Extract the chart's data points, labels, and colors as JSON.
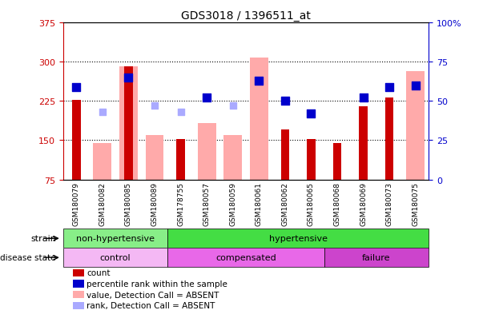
{
  "title": "GDS3018 / 1396511_at",
  "samples": [
    "GSM180079",
    "GSM180082",
    "GSM180085",
    "GSM180089",
    "GSM178755",
    "GSM180057",
    "GSM180059",
    "GSM180061",
    "GSM180062",
    "GSM180065",
    "GSM180068",
    "GSM180069",
    "GSM180073",
    "GSM180075"
  ],
  "count_values": [
    227,
    null,
    291,
    null,
    152,
    null,
    null,
    null,
    170,
    152,
    145,
    215,
    232,
    null
  ],
  "percentile_values": [
    59,
    null,
    65,
    null,
    null,
    52,
    null,
    63,
    50,
    42,
    null,
    52,
    59,
    60
  ],
  "absent_value": [
    null,
    145,
    291,
    160,
    null,
    183,
    160,
    308,
    null,
    null,
    null,
    null,
    null,
    282
  ],
  "absent_rank": [
    null,
    43,
    65,
    47,
    43,
    null,
    47,
    63,
    null,
    null,
    null,
    null,
    null,
    60
  ],
  "ylim_left": [
    75,
    375
  ],
  "ylim_right": [
    0,
    100
  ],
  "yticks_left": [
    75,
    150,
    225,
    300,
    375
  ],
  "yticks_right": [
    0,
    25,
    50,
    75,
    100
  ],
  "ytick_labels_left": [
    "75",
    "150",
    "225",
    "300",
    "375"
  ],
  "ytick_labels_right": [
    "0",
    "25",
    "50",
    "75",
    "100%"
  ],
  "hlines": [
    150,
    225,
    300
  ],
  "strain_groups": [
    {
      "label": "non-hypertensive",
      "start": 0,
      "end": 4,
      "color": "#88ee88"
    },
    {
      "label": "hypertensive",
      "start": 4,
      "end": 14,
      "color": "#44dd44"
    }
  ],
  "disease_colors": [
    "#f4b8f4",
    "#e868e8",
    "#cc44cc"
  ],
  "disease_groups": [
    {
      "label": "control",
      "start": 0,
      "end": 4
    },
    {
      "label": "compensated",
      "start": 4,
      "end": 10
    },
    {
      "label": "failure",
      "start": 10,
      "end": 14
    }
  ],
  "count_color": "#cc0000",
  "percentile_color": "#0000cc",
  "absent_value_color": "#ffaaaa",
  "absent_rank_color": "#aaaaff",
  "tick_label_color_left": "#cc0000",
  "tick_label_color_right": "#0000cc",
  "legend_items": [
    {
      "color": "#cc0000",
      "label": "count"
    },
    {
      "color": "#0000cc",
      "label": "percentile rank within the sample"
    },
    {
      "color": "#ffaaaa",
      "label": "value, Detection Call = ABSENT"
    },
    {
      "color": "#aaaaff",
      "label": "rank, Detection Call = ABSENT"
    }
  ]
}
